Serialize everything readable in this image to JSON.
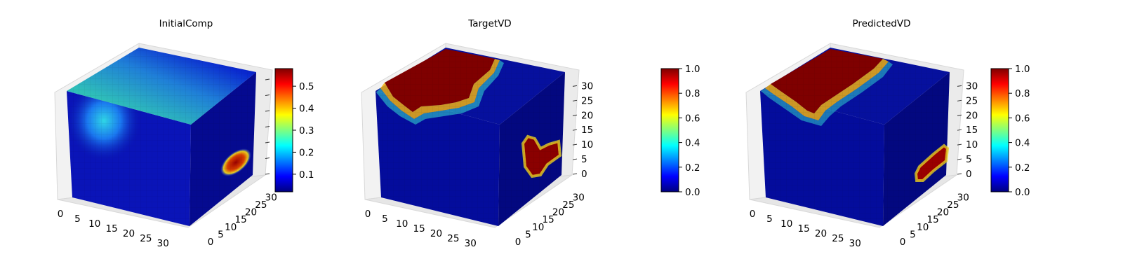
{
  "colormap": {
    "name": "jet",
    "stops": [
      "#00007f",
      "#0000ff",
      "#007fff",
      "#00ffff",
      "#7fff7f",
      "#ffff00",
      "#ff7f00",
      "#ff0000",
      "#7f0000"
    ]
  },
  "chart_data": [
    {
      "type": "heatmap",
      "subtype": "3d-voxel-cube",
      "title": "InitialComp",
      "grid_size": [
        32,
        32,
        32
      ],
      "x_ticks": [
        0,
        5,
        10,
        15,
        20,
        25,
        30
      ],
      "y_ticks": [
        0,
        5,
        10,
        15,
        20,
        25,
        30
      ],
      "z_ticks": [],
      "colorbar": {
        "min": 0.02,
        "max": 0.58,
        "ticks": [
          "0.1",
          "0.2",
          "0.3",
          "0.4",
          "0.5"
        ],
        "tick_values": [
          0.1,
          0.2,
          0.3,
          0.4,
          0.5
        ]
      },
      "field_description": "low values (~0.05) throughout, moderate (~0.25-0.35) near top back, peak ~0.55 spot on right face"
    },
    {
      "type": "heatmap",
      "subtype": "3d-voxel-cube",
      "title": "TargetVD",
      "grid_size": [
        32,
        32,
        32
      ],
      "x_ticks": [
        0,
        5,
        10,
        15,
        20,
        25,
        30
      ],
      "y_ticks": [
        0,
        5,
        10,
        15,
        20,
        25,
        30
      ],
      "z_ticks": [
        0,
        5,
        10,
        15,
        20,
        25,
        30
      ],
      "colorbar": {
        "min": 0.0,
        "max": 1.0,
        "ticks": [
          "0.0",
          "0.2",
          "0.4",
          "0.6",
          "0.8",
          "1.0"
        ],
        "tick_values": [
          0,
          0.2,
          0.4,
          0.6,
          0.8,
          1.0
        ]
      },
      "field_description": "values near 0 except a saturated (1.0) region on top face and a blob on right face"
    },
    {
      "type": "heatmap",
      "subtype": "3d-voxel-cube",
      "title": "PredictedVD",
      "grid_size": [
        32,
        32,
        32
      ],
      "x_ticks": [
        0,
        5,
        10,
        15,
        20,
        25,
        30
      ],
      "y_ticks": [
        0,
        5,
        10,
        15,
        20,
        25,
        30
      ],
      "z_ticks": [
        0,
        5,
        10,
        15,
        20,
        25,
        30
      ],
      "colorbar": {
        "min": 0.0,
        "max": 1.0,
        "ticks": [
          "0.0",
          "0.2",
          "0.4",
          "0.6",
          "0.8",
          "1.0"
        ],
        "tick_values": [
          0,
          0.2,
          0.4,
          0.6,
          0.8,
          1.0
        ]
      },
      "field_description": "values near 0 except a saturated (1.0) region on top face and a stripe on right face"
    }
  ]
}
